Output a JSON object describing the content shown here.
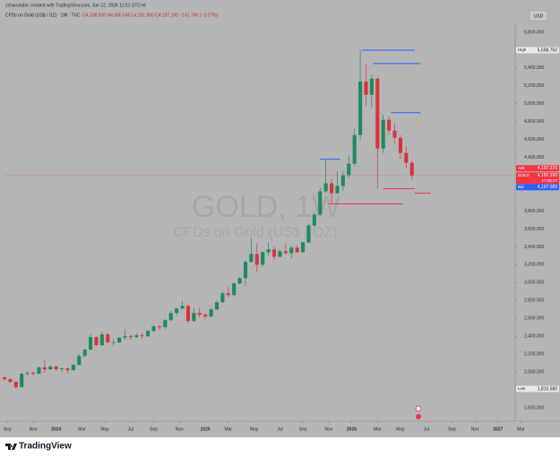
{
  "header": {
    "author_line": "zzhaostabic created with TradingView.com, Jun 12, 2026 11:51 UTC+8",
    "symbol_line": "CFDs on Gold (US$ / OZ) · 1W · TVC",
    "ohlc_text": "O4,338.930 H4,365.540 L4,151.950 C4,197.190 −141.740 (−3.27%)",
    "currency": "USD"
  },
  "watermark": {
    "symbol": "GOLD, 1W",
    "description": "CFDs on Gold (US$ / OZ)"
  },
  "footer": {
    "brand": "TradingView"
  },
  "chart_data": {
    "type": "candlestick",
    "up_color": "#1f8a5f",
    "down_color": "#d8343d",
    "xlim": [
      0,
      178
    ],
    "ylim": [
      1450,
      5910
    ],
    "xticks": [
      {
        "value": 1,
        "label": "Sep"
      },
      {
        "value": 10,
        "label": "Nov"
      },
      {
        "value": 18,
        "label": "2024"
      },
      {
        "value": 27,
        "label": "Mar"
      },
      {
        "value": 35,
        "label": "May"
      },
      {
        "value": 44,
        "label": "Jul"
      },
      {
        "value": 52,
        "label": "Sep"
      },
      {
        "value": 61,
        "label": "Nov"
      },
      {
        "value": 70,
        "label": "2025"
      },
      {
        "value": 78,
        "label": "Mar"
      },
      {
        "value": 87,
        "label": "May"
      },
      {
        "value": 96,
        "label": "Jul"
      },
      {
        "value": 104,
        "label": "Sep"
      },
      {
        "value": 113,
        "label": "Nov"
      },
      {
        "value": 121,
        "label": "2026"
      },
      {
        "value": 130,
        "label": "Mar"
      },
      {
        "value": 138,
        "label": "May"
      },
      {
        "value": 147,
        "label": "Jul"
      },
      {
        "value": 156,
        "label": "Sep"
      },
      {
        "value": 164,
        "label": "Nov"
      },
      {
        "value": 172,
        "label": "2027"
      },
      {
        "value": 180,
        "label": "Mar"
      }
    ],
    "yticks": [
      {
        "value": 1600,
        "label": "1,600.000"
      },
      {
        "value": 2000,
        "label": "2,000.000"
      },
      {
        "value": 2200,
        "label": "2,200.000"
      },
      {
        "value": 2400,
        "label": "2,400.000"
      },
      {
        "value": 2600,
        "label": "2,600.000"
      },
      {
        "value": 2800,
        "label": "2,800.000"
      },
      {
        "value": 3000,
        "label": "3,000.000"
      },
      {
        "value": 3200,
        "label": "3,200.000"
      },
      {
        "value": 3400,
        "label": "3,400.000"
      },
      {
        "value": 3600,
        "label": "3,600.000"
      },
      {
        "value": 3800,
        "label": "3,800.000"
      },
      {
        "value": 4400,
        "label": "4,400.000"
      },
      {
        "value": 4600,
        "label": "4,600.000"
      },
      {
        "value": 4800,
        "label": "4,800.000"
      },
      {
        "value": 5000,
        "label": "5,000.000"
      },
      {
        "value": 5200,
        "label": "5,200.000"
      },
      {
        "value": 5400,
        "label": "5,400.000"
      },
      {
        "value": 5800,
        "label": "5,800.000"
      }
    ],
    "x": [
      0,
      2,
      4,
      6,
      8,
      10,
      12,
      14,
      16,
      18,
      20,
      22,
      24,
      26,
      28,
      30,
      32,
      34,
      36,
      38,
      40,
      42,
      44,
      46,
      48,
      50,
      52,
      54,
      56,
      58,
      60,
      62,
      64,
      66,
      68,
      70,
      72,
      74,
      76,
      78,
      80,
      82,
      84,
      86,
      88,
      90,
      92,
      94,
      96,
      98,
      100,
      102,
      104,
      106,
      108,
      110,
      112,
      114,
      116,
      118,
      120,
      122,
      124,
      126,
      128,
      130,
      132,
      134,
      136,
      138,
      140,
      142
    ],
    "ohlc": [
      [
        1940,
        1950,
        1900,
        1920
      ],
      [
        1920,
        1930,
        1880,
        1890
      ],
      [
        1890,
        1895,
        1810.58,
        1830
      ],
      [
        1830,
        1990,
        1825,
        1980
      ],
      [
        1980,
        2010,
        1960,
        1990
      ],
      [
        1990,
        2010,
        1960,
        1980
      ],
      [
        1980,
        2060,
        1975,
        2050
      ],
      [
        2050,
        2140,
        1990,
        2030
      ],
      [
        2030,
        2080,
        2020,
        2060
      ],
      [
        2060,
        2070,
        2010,
        2030
      ],
      [
        2030,
        2050,
        2000,
        2040
      ],
      [
        2040,
        2050,
        1985,
        2020
      ],
      [
        2020,
        2090,
        2015,
        2080
      ],
      [
        2080,
        2200,
        2075,
        2180
      ],
      [
        2180,
        2260,
        2160,
        2250
      ],
      [
        2250,
        2430,
        2240,
        2390
      ],
      [
        2390,
        2400,
        2290,
        2300
      ],
      [
        2300,
        2450,
        2290,
        2420
      ],
      [
        2420,
        2440,
        2320,
        2330
      ],
      [
        2330,
        2370,
        2290,
        2330
      ],
      [
        2330,
        2390,
        2320,
        2385
      ],
      [
        2385,
        2480,
        2360,
        2400
      ],
      [
        2400,
        2420,
        2360,
        2390
      ],
      [
        2390,
        2430,
        2380,
        2410
      ],
      [
        2410,
        2440,
        2370,
        2400
      ],
      [
        2400,
        2470,
        2390,
        2460
      ],
      [
        2460,
        2530,
        2440,
        2510
      ],
      [
        2510,
        2530,
        2470,
        2500
      ],
      [
        2500,
        2590,
        2480,
        2580
      ],
      [
        2580,
        2680,
        2570,
        2660
      ],
      [
        2660,
        2720,
        2630,
        2710
      ],
      [
        2710,
        2790,
        2700,
        2740
      ],
      [
        2740,
        2760,
        2540,
        2570
      ],
      [
        2570,
        2720,
        2560,
        2660
      ],
      [
        2660,
        2720,
        2610,
        2640
      ],
      [
        2640,
        2660,
        2590,
        2620
      ],
      [
        2620,
        2720,
        2610,
        2700
      ],
      [
        2700,
        2800,
        2690,
        2780
      ],
      [
        2780,
        2900,
        2770,
        2880
      ],
      [
        2880,
        2950,
        2830,
        2860
      ],
      [
        2860,
        3000,
        2850,
        2990
      ],
      [
        2990,
        3060,
        2980,
        3050
      ],
      [
        3050,
        3250,
        2960,
        3230
      ],
      [
        3230,
        3500,
        3220,
        3320
      ],
      [
        3320,
        3440,
        3120,
        3200
      ],
      [
        3200,
        3350,
        3180,
        3340
      ],
      [
        3340,
        3450,
        3300,
        3370
      ],
      [
        3370,
        3400,
        3250,
        3290
      ],
      [
        3290,
        3370,
        3280,
        3350
      ],
      [
        3350,
        3440,
        3310,
        3330
      ],
      [
        3330,
        3410,
        3270,
        3390
      ],
      [
        3390,
        3420,
        3330,
        3340
      ],
      [
        3340,
        3460,
        3330,
        3450
      ],
      [
        3450,
        3660,
        3440,
        3640
      ],
      [
        3640,
        3790,
        3620,
        3760
      ],
      [
        3760,
        4060,
        3750,
        4020
      ],
      [
        4020,
        4380,
        4000,
        4110
      ],
      [
        4110,
        4160,
        3890,
        4000
      ],
      [
        4000,
        4250,
        3990,
        4080
      ],
      [
        4080,
        4250,
        4030,
        4200
      ],
      [
        4200,
        4420,
        4170,
        4330
      ],
      [
        4330,
        4720,
        4300,
        4650
      ],
      [
        4650,
        5598.75,
        4600,
        5250
      ],
      [
        5250,
        5450,
        4980,
        5100
      ],
      [
        5100,
        5330,
        4950,
        5280
      ],
      [
        5280,
        5300,
        4050,
        4500
      ],
      [
        4500,
        4880,
        4450,
        4820
      ],
      [
        4820,
        4860,
        4650,
        4700
      ],
      [
        4700,
        4780,
        4550,
        4620
      ],
      [
        4620,
        4650,
        4380,
        4450
      ],
      [
        4450,
        4520,
        4280,
        4338.93
      ],
      [
        4338.93,
        4365.54,
        4151.95,
        4197.19
      ]
    ],
    "levels": [
      {
        "color": "#2962ff",
        "value": 4380,
        "x": [
          110,
          117
        ]
      },
      {
        "color": "#2962ff",
        "value": 5598.75,
        "x": [
          124.5,
          143
        ]
      },
      {
        "color": "#2962ff",
        "value": 5450,
        "x": [
          128.5,
          145
        ]
      },
      {
        "color": "#2962ff",
        "value": 4900,
        "x": [
          134.7,
          145
        ]
      },
      {
        "color": "#f23645",
        "value": 3880,
        "x": [
          113,
          139
        ]
      },
      {
        "color": "#f23645",
        "value": 4050,
        "x": [
          132,
          143
        ]
      },
      {
        "color": "#f23645",
        "value": 4000,
        "x": [
          143,
          148.6
        ]
      }
    ],
    "price_labels": [
      {
        "name": "High",
        "value": 5598.75,
        "label": "5,598.750",
        "color": "#e8e8e8"
      },
      {
        "name": "Low",
        "value": 1810.58,
        "label": "1,810.580",
        "color": "#e8e8e8"
      },
      {
        "name": "Ask",
        "value": 4197.37,
        "label": "4,197.370",
        "color": "#f23645"
      },
      {
        "name": "GOLD",
        "value": 4197.19,
        "label": "4,197.190",
        "color": "#f23645",
        "countdown": "17:08:27"
      },
      {
        "name": "Bid",
        "value": 4197.089,
        "label": "4,197.089",
        "color": "#2962ff"
      }
    ]
  }
}
